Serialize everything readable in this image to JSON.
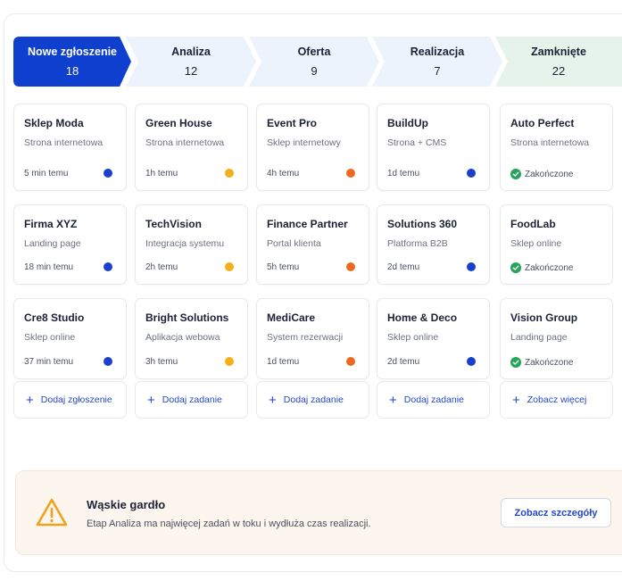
{
  "stages": [
    {
      "label": "Nowe zgłoszenie",
      "count": "18"
    },
    {
      "label": "Analiza",
      "count": "12"
    },
    {
      "label": "Oferta",
      "count": "9"
    },
    {
      "label": "Realizacja",
      "count": "7"
    },
    {
      "label": "Zamknięte",
      "count": "22"
    }
  ],
  "colors": {
    "active_stage": "#0f3fcf",
    "stage_bg": "#edf3fc",
    "closed_stage_bg": "#e6f3ea",
    "status_blue": "#1a3fcb",
    "status_yellow": "#f4b01c",
    "status_orange": "#ea6b1f",
    "status_green": "#27a35a",
    "accent": "#2448c9"
  },
  "columns": [
    {
      "cards": [
        {
          "title": "Sklep Moda",
          "subtitle": "Strona internetowa",
          "time": "5 min temu",
          "status": "blue"
        },
        {
          "title": "Firma XYZ",
          "subtitle": "Landing page",
          "time": "18 min temu",
          "status": "blue"
        },
        {
          "title": "Cre8 Studio",
          "subtitle": "Sklep online",
          "time": "37 min temu",
          "status": "blue"
        }
      ],
      "action": "Dodaj zgłoszenie"
    },
    {
      "cards": [
        {
          "title": "Green House",
          "subtitle": "Strona internetowa",
          "time": "1h temu",
          "status": "yellow"
        },
        {
          "title": "TechVision",
          "subtitle": "Integracja systemu",
          "time": "2h temu",
          "status": "yellow"
        },
        {
          "title": "Bright Solutions",
          "subtitle": "Aplikacja webowa",
          "time": "3h temu",
          "status": "yellow"
        }
      ],
      "action": "Dodaj zadanie"
    },
    {
      "cards": [
        {
          "title": "Event Pro",
          "subtitle": "Sklep internetowy",
          "time": "4h temu",
          "status": "orange"
        },
        {
          "title": "Finance Partner",
          "subtitle": "Portal klienta",
          "time": "5h temu",
          "status": "orange"
        },
        {
          "title": "MediCare",
          "subtitle": "System rezerwacji",
          "time": "1d temu",
          "status": "orange"
        }
      ],
      "action": "Dodaj zadanie"
    },
    {
      "cards": [
        {
          "title": "BuildUp",
          "subtitle": "Strona + CMS",
          "time": "1d temu",
          "status": "blue"
        },
        {
          "title": "Solutions 360",
          "subtitle": "Platforma B2B",
          "time": "2d temu",
          "status": "blue"
        },
        {
          "title": "Home & Deco",
          "subtitle": "Sklep online",
          "time": "2d temu",
          "status": "blue"
        }
      ],
      "action": "Dodaj zadanie"
    },
    {
      "cards": [
        {
          "title": "Auto Perfect",
          "subtitle": "Strona internetowa",
          "done_label": "Zakończone",
          "status": "green"
        },
        {
          "title": "FoodLab",
          "subtitle": "Sklep online",
          "done_label": "Zakończone",
          "status": "green"
        },
        {
          "title": "Vision Group",
          "subtitle": "Landing page",
          "done_label": "Zakończone",
          "status": "green"
        }
      ],
      "action": "Zobacz więcej"
    }
  ],
  "alert": {
    "icon": "warning-triangle-icon",
    "title": "Wąskie gardło",
    "description": "Etap Analiza ma najwięcej zadań w toku i wydłuża czas realizacji.",
    "button": "Zobacz szczegóły"
  }
}
